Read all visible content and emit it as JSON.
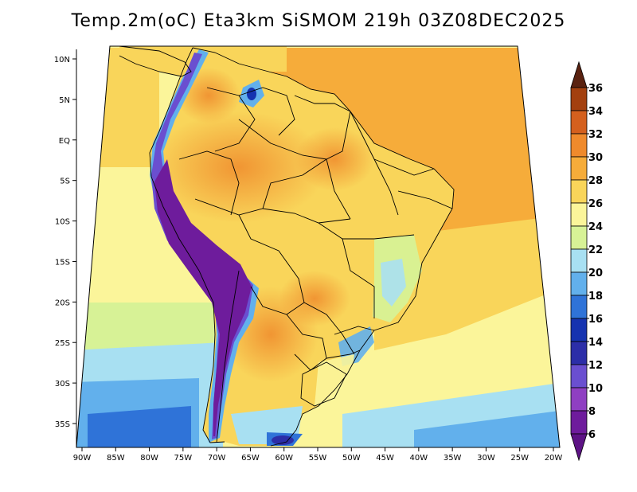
{
  "title": "Temp.2m(oC) Eta3km SiSMOM 219h 03Z08DEC2025",
  "map": {
    "variable": "2 m air temperature",
    "units": "oC",
    "lon_range": [
      -90,
      -20
    ],
    "lat_range": [
      -38,
      11
    ],
    "lon_ticks": [
      {
        "value": -90,
        "label": "90W"
      },
      {
        "value": -85,
        "label": "85W"
      },
      {
        "value": -80,
        "label": "80W"
      },
      {
        "value": -75,
        "label": "75W"
      },
      {
        "value": -70,
        "label": "70W"
      },
      {
        "value": -65,
        "label": "65W"
      },
      {
        "value": -60,
        "label": "60W"
      },
      {
        "value": -55,
        "label": "55W"
      },
      {
        "value": -50,
        "label": "50W"
      },
      {
        "value": -45,
        "label": "45W"
      },
      {
        "value": -40,
        "label": "40W"
      },
      {
        "value": -35,
        "label": "35W"
      },
      {
        "value": -30,
        "label": "30W"
      },
      {
        "value": -25,
        "label": "25W"
      },
      {
        "value": -20,
        "label": "20W"
      }
    ],
    "lat_ticks": [
      {
        "value": 10,
        "label": "10N"
      },
      {
        "value": 5,
        "label": "5N"
      },
      {
        "value": 0,
        "label": "EQ"
      },
      {
        "value": -5,
        "label": "5S"
      },
      {
        "value": -10,
        "label": "10S"
      },
      {
        "value": -15,
        "label": "15S"
      },
      {
        "value": -20,
        "label": "20S"
      },
      {
        "value": -25,
        "label": "25S"
      },
      {
        "value": -30,
        "label": "30S"
      },
      {
        "value": -35,
        "label": "35S"
      }
    ]
  },
  "colorbar": {
    "levels": [
      {
        "label": "36",
        "color": "#7a2e14"
      },
      {
        "label": "34",
        "color": "#a3400f"
      },
      {
        "label": "32",
        "color": "#d4601e"
      },
      {
        "label": "30",
        "color": "#ef8a2c"
      },
      {
        "label": "28",
        "color": "#f6ac3a"
      },
      {
        "label": "26",
        "color": "#f9d55a"
      },
      {
        "label": "24",
        "color": "#fbf59a"
      },
      {
        "label": "22",
        "color": "#d7f296"
      },
      {
        "label": "20",
        "color": "#a8e0f2"
      },
      {
        "label": "18",
        "color": "#62b0ec"
      },
      {
        "label": "16",
        "color": "#2f73d8"
      },
      {
        "label": "14",
        "color": "#1533b0"
      },
      {
        "label": "12",
        "color": "#2c2ea8"
      },
      {
        "label": "10",
        "color": "#6a4fd0"
      },
      {
        "label": "8",
        "color": "#8f3fc2"
      },
      {
        "label": "6",
        "color": "#6e1c9c"
      }
    ],
    "top_arrow_color": "#5a2210",
    "bottom_arrow_color": "#5d1385"
  },
  "colors": {
    "ocean_north": "#f9d55a",
    "ocean_warm": "#f6ac3a",
    "ocean_mid": "#fbf59a",
    "ocean_cool": "#d7f296",
    "ocean_cold": "#a8e0f2",
    "ocean_colder": "#62b0ec",
    "land_hot": "#f6ac3a",
    "land_warm": "#f9d55a",
    "andes": "#6e1c9c",
    "boundary": "#000000"
  }
}
